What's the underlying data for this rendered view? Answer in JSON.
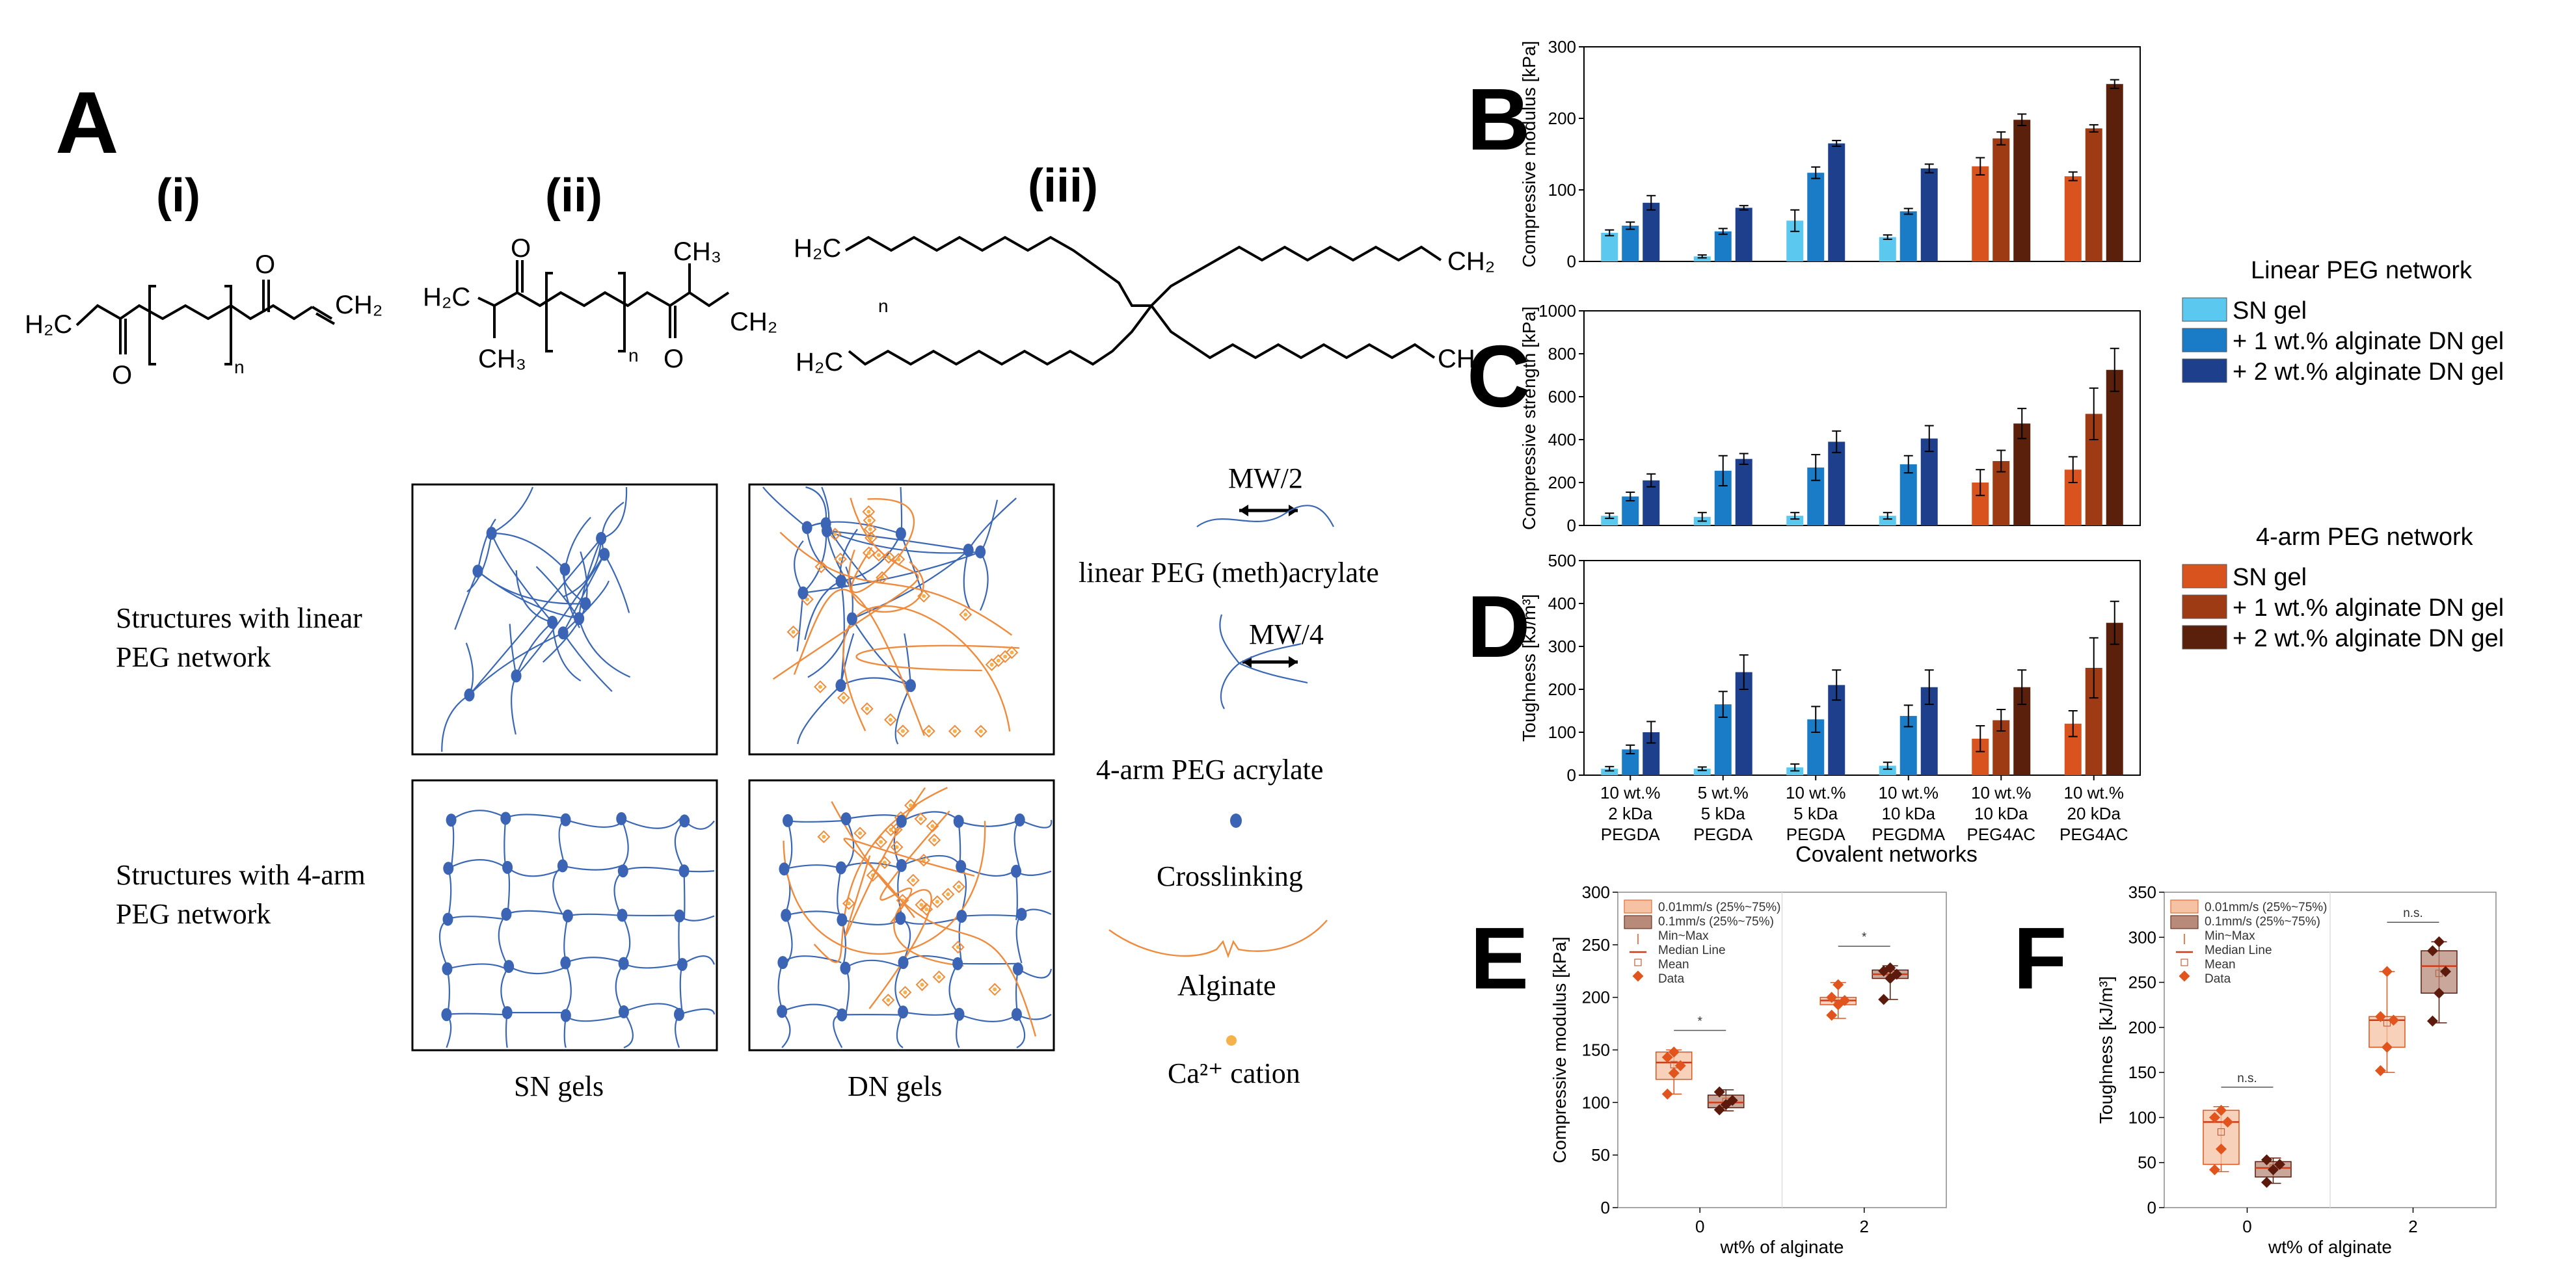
{
  "panel_labels": {
    "A": "A",
    "B": "B",
    "C": "C",
    "D": "D",
    "E": "E",
    "F": "F"
  },
  "panel_a": {
    "structures": {
      "i": {
        "label": "(i)",
        "left_group": "H₂C",
        "subscript": "n",
        "right_group": "CH₂"
      },
      "ii": {
        "label": "(ii)",
        "left_group": "H₂C",
        "methyl_left": "CH₃",
        "methyl_right": "CH₃",
        "subscript": "n",
        "right_group": "CH₂"
      },
      "iii": {
        "label": "(iii)",
        "group_top_left": "H₂C",
        "group_bottom_left": "H₂C",
        "group_top_right": "CH₂",
        "group_bottom_right": "CH₂",
        "subscript": "n"
      }
    },
    "row_labels": {
      "linear_line1": "Structures with linear",
      "linear_line2": "PEG network",
      "fourarm_line1": "Structures with 4-arm",
      "fourarm_line2": "PEG network"
    },
    "column_labels": {
      "sn": "SN gels",
      "dn": "DN gels"
    },
    "legend": {
      "mw2": "MW/2",
      "linear": "linear PEG (meth)acrylate",
      "mw4": "MW/4",
      "fourarm": "4-arm PEG acrylate",
      "crosslinking": "Crosslinking",
      "alginate": "Alginate",
      "cation": "Ca²⁺ cation"
    },
    "colors": {
      "network": "#3a67b5",
      "node": "#3b64b4",
      "alginate": "#f08a3c",
      "cation": "#f4b248"
    }
  },
  "chart_data": [
    {
      "id": "B",
      "type": "bar",
      "ylabel": "Compressive modulus [kPa]",
      "ylim": [
        0,
        300
      ],
      "yticks": [
        0,
        100,
        200,
        300
      ],
      "error_bars": true,
      "groups": [
        "10 wt.%|2 kDa|PEGDA",
        "5 wt.%|5 kDa|PEGDA",
        "10 wt.%|5 kDa|PEGDA",
        "10 wt.%|10 kDa|PEGDMA",
        "10 wt.%|10 kDa|PEG4AC",
        "10 wt.%|20 kDa|PEG4AC"
      ],
      "series": [
        {
          "values": [
            40,
            7,
            57,
            34,
            133,
            119
          ],
          "errors": [
            4,
            2,
            15,
            3,
            12,
            6
          ]
        },
        {
          "values": [
            50,
            42,
            124,
            70,
            172,
            186
          ],
          "errors": [
            5,
            4,
            8,
            4,
            9,
            5
          ]
        },
        {
          "values": [
            82,
            75,
            165,
            130,
            198,
            248
          ],
          "errors": [
            10,
            3,
            4,
            6,
            8,
            6
          ]
        }
      ]
    },
    {
      "id": "C",
      "type": "bar",
      "ylabel": "Compressive strength [kPa]",
      "ylim": [
        0,
        1000
      ],
      "yticks": [
        0,
        200,
        400,
        600,
        800,
        1000
      ],
      "error_bars": true,
      "series": [
        {
          "values": [
            45,
            40,
            45,
            45,
            200,
            260
          ],
          "errors": [
            12,
            20,
            15,
            15,
            60,
            60
          ]
        },
        {
          "values": [
            135,
            255,
            270,
            285,
            300,
            520
          ],
          "errors": [
            20,
            70,
            60,
            40,
            50,
            120
          ]
        },
        {
          "values": [
            210,
            310,
            390,
            405,
            475,
            725
          ],
          "errors": [
            30,
            25,
            50,
            60,
            70,
            100
          ]
        }
      ]
    },
    {
      "id": "D",
      "type": "bar",
      "ylabel": "Toughness [kJ/m³]",
      "ylim": [
        0,
        500
      ],
      "yticks": [
        0,
        100,
        200,
        300,
        400,
        500
      ],
      "error_bars": true,
      "xlabel": "Covalent networks",
      "series": [
        {
          "values": [
            15,
            15,
            18,
            22,
            85,
            120
          ],
          "errors": [
            5,
            4,
            8,
            8,
            30,
            30
          ]
        },
        {
          "values": [
            60,
            165,
            130,
            138,
            128,
            250
          ],
          "errors": [
            10,
            30,
            30,
            25,
            25,
            70
          ]
        },
        {
          "values": [
            100,
            240,
            210,
            205,
            205,
            355
          ],
          "errors": [
            25,
            40,
            35,
            40,
            40,
            50
          ]
        }
      ]
    },
    {
      "id": "E",
      "type": "box",
      "ylabel": "Compressive modulus [kPa]",
      "xlabel": "wt% of alginate",
      "ylim": [
        0,
        300
      ],
      "yticks": [
        0,
        50,
        100,
        150,
        200,
        250,
        300
      ],
      "categories": [
        "0",
        "2"
      ],
      "boxes": [
        {
          "category": "0",
          "series": "0.01mm/s",
          "min": 108,
          "q1": 122,
          "median": 138,
          "q3": 148,
          "max": 150,
          "mean": 136,
          "points": [
            108,
            128,
            135,
            143,
            148
          ]
        },
        {
          "category": "0",
          "series": "0.1mm/s",
          "min": 92,
          "q1": 95,
          "median": 100,
          "q3": 107,
          "max": 112,
          "mean": 101,
          "points": [
            93,
            98,
            102,
            110
          ]
        },
        {
          "category": "2",
          "series": "0.01mm/s",
          "min": 180,
          "q1": 193,
          "median": 197,
          "q3": 200,
          "max": 214,
          "mean": 197,
          "points": [
            183,
            193,
            197,
            200,
            212
          ]
        },
        {
          "category": "2",
          "series": "0.1mm/s",
          "min": 198,
          "q1": 218,
          "median": 222,
          "q3": 226,
          "max": 230,
          "mean": 221,
          "points": [
            198,
            218,
            222,
            225,
            228
          ]
        }
      ],
      "significance": [
        "*",
        "*"
      ]
    },
    {
      "id": "F",
      "type": "box",
      "ylabel": "Toughness [kJ/m³]",
      "xlabel": "wt% of alginate",
      "ylim": [
        0,
        350
      ],
      "yticks": [
        0,
        50,
        100,
        150,
        200,
        250,
        300,
        350
      ],
      "categories": [
        "0",
        "2"
      ],
      "boxes": [
        {
          "category": "0",
          "series": "0.01mm/s",
          "min": 40,
          "q1": 48,
          "median": 95,
          "q3": 108,
          "max": 112,
          "mean": 84,
          "points": [
            42,
            65,
            95,
            100,
            108
          ]
        },
        {
          "category": "0",
          "series": "0.1mm/s",
          "min": 27,
          "q1": 34,
          "median": 44,
          "q3": 51,
          "max": 55,
          "mean": 44,
          "points": [
            28,
            42,
            48,
            53
          ]
        },
        {
          "category": "2",
          "series": "0.01mm/s",
          "min": 150,
          "q1": 178,
          "median": 208,
          "q3": 212,
          "max": 262,
          "mean": 205,
          "points": [
            152,
            178,
            208,
            212,
            262
          ]
        },
        {
          "category": "2",
          "series": "0.1mm/s",
          "min": 205,
          "q1": 238,
          "median": 268,
          "q3": 285,
          "max": 295,
          "mean": 260,
          "points": [
            207,
            238,
            262,
            285,
            295
          ]
        }
      ],
      "significance": [
        "n.s.",
        "n.s."
      ]
    }
  ],
  "bar_legend": {
    "linear_title": "Linear PEG network",
    "linear_items": [
      "SN gel",
      "+ 1 wt.% alginate DN gel",
      "+ 2 wt.% alginate DN gel"
    ],
    "fourarm_title": "4-arm PEG network",
    "fourarm_items": [
      "SN gel",
      "+ 1 wt.% alginate DN gel",
      "+ 2 wt.% alginate DN gel"
    ],
    "linear_colors": [
      "#5bc8ef",
      "#1a7cc6",
      "#1d3f8c"
    ],
    "fourarm_colors": [
      "#d9531e",
      "#9e3a14",
      "#5a200c"
    ]
  },
  "box_legend": {
    "items": [
      "0.01mm/s (25%~75%)",
      "0.1mm/s (25%~75%)",
      "Min~Max",
      "Median Line",
      "Mean",
      "Data"
    ],
    "colors": {
      "light": "#f6c2a4",
      "dark": "#b88a7a",
      "median": "#d23a16",
      "point_light": "#e2541d",
      "point_dark": "#5b1a0c"
    }
  }
}
